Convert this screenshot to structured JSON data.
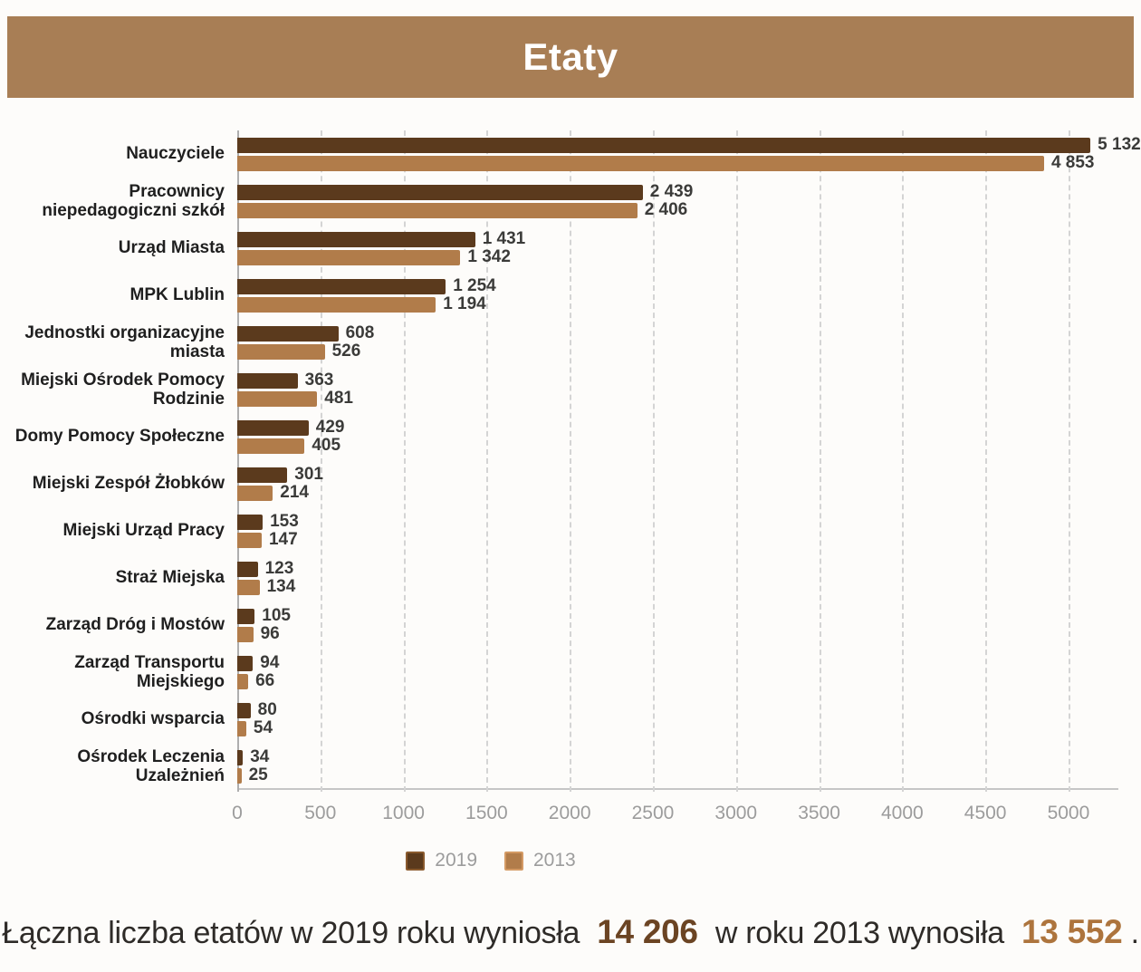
{
  "header": {
    "title": "Etaty",
    "bar_color": "#a87e55",
    "title_color": "#ffffff"
  },
  "chart_data": {
    "type": "bar",
    "orientation": "horizontal",
    "title": "Etaty",
    "xlabel": "",
    "ylabel": "",
    "xlim": [
      0,
      5300
    ],
    "xticks": [
      0,
      500,
      1000,
      1500,
      2000,
      2500,
      3000,
      3500,
      4000,
      4500,
      5000
    ],
    "grid": "vertical-dashed",
    "legend_position": "bottom",
    "categories": [
      "Nauczyciele",
      "Pracownicy niepedagogiczni szkół",
      "Urząd Miasta",
      "MPK Lublin",
      "Jednostki organizacyjne miasta",
      "Miejski Ośrodek Pomocy Rodzinie",
      "Domy Pomocy Społeczne",
      "Miejski Zespół Żłobków",
      "Miejski Urząd Pracy",
      "Straż Miejska",
      "Zarząd Dróg i Mostów",
      "Zarząd Transportu Miejskiego",
      "Ośrodki wsparcia",
      "Ośrodek Leczenia Uzależnień"
    ],
    "series": [
      {
        "name": "2019",
        "color": "#5b3a1d",
        "values": [
          5132,
          2439,
          1431,
          1254,
          608,
          363,
          429,
          301,
          153,
          123,
          105,
          94,
          80,
          34
        ],
        "display": [
          "5 132",
          "2 439",
          "1 431",
          "1 254",
          "608",
          "363",
          "429",
          "301",
          "153",
          "123",
          "105",
          "94",
          "80",
          "34"
        ]
      },
      {
        "name": "2013",
        "color": "#b17c4a",
        "values": [
          4853,
          2406,
          1342,
          1194,
          526,
          481,
          405,
          214,
          147,
          134,
          96,
          66,
          54,
          25
        ],
        "display": [
          "4 853",
          "2 406",
          "1 342",
          "1 194",
          "526",
          "481",
          "405",
          "214",
          "147",
          "134",
          "96",
          "66",
          "54",
          "25"
        ]
      }
    ]
  },
  "summary": {
    "part1": "Łączna liczba etatów w 2019 roku wyniosła",
    "value_2019": "14 206",
    "part2": "w roku 2013 wynosiła",
    "value_2013": "13 552",
    "period": "."
  }
}
